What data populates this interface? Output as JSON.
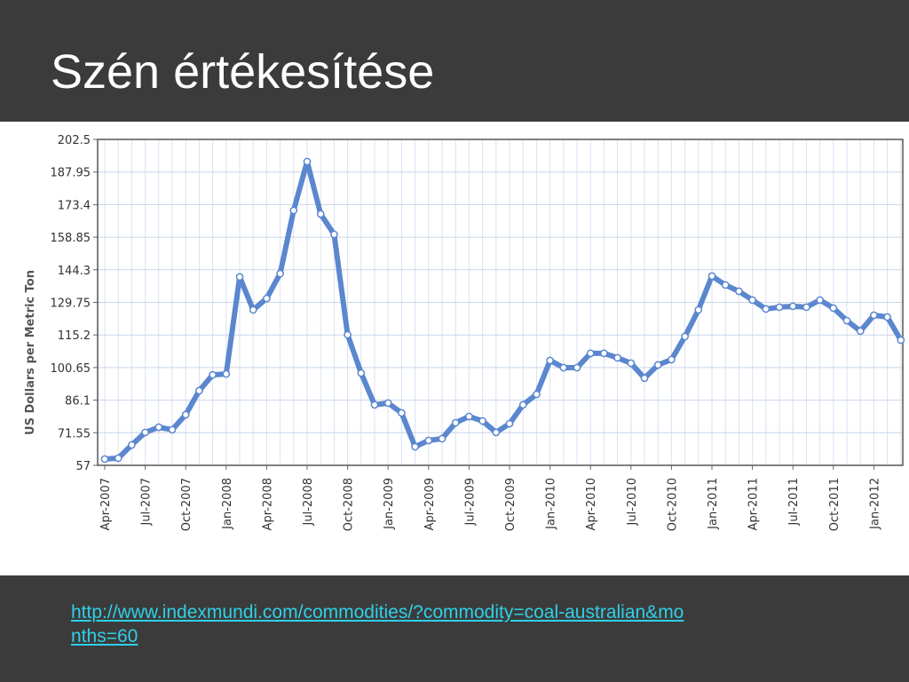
{
  "title": "Szén értékesítése",
  "source_link": "http://www.indexmundi.com/commodities/?commodity=coal-australian&months=60",
  "chart_data": {
    "type": "line",
    "y_label": "US Dollars per Metric Ton",
    "categories": [
      "Apr-2007",
      null,
      null,
      "Jul-2007",
      null,
      null,
      "Oct-2007",
      null,
      null,
      "Jan-2008",
      null,
      null,
      "Apr-2008",
      null,
      null,
      "Jul-2008",
      null,
      null,
      "Oct-2008",
      null,
      null,
      "Jan-2009",
      null,
      null,
      "Apr-2009",
      null,
      null,
      "Jul-2009",
      null,
      null,
      "Oct-2009",
      null,
      null,
      "Jan-2010",
      null,
      null,
      "Apr-2010",
      null,
      null,
      "Jul-2010",
      null,
      null,
      "Oct-2010",
      null,
      null,
      "Jan-2011",
      null,
      null,
      "Apr-2011",
      null,
      null,
      "Jul-2011",
      null,
      null,
      "Oct-2011",
      null,
      null,
      "Jan-2012",
      null,
      null
    ],
    "values": [
      59.8,
      60.2,
      66.1,
      71.7,
      74,
      72.9,
      79.6,
      90.3,
      97.4,
      97.8,
      141.1,
      126.4,
      131.5,
      142.6,
      170.8,
      192.6,
      169.2,
      160.1,
      115.3,
      98.2,
      84,
      84.8,
      80.4,
      65.3,
      68.1,
      68.9,
      76,
      78.8,
      76.8,
      71.7,
      75.6,
      84,
      88.7,
      103.8,
      100.6,
      100.6,
      107,
      107,
      105,
      102.6,
      95.9,
      101.8,
      104.2,
      114.5,
      126.4,
      141.5,
      137.5,
      134.7,
      130.8,
      126.8,
      127.6,
      128,
      127.6,
      130.8,
      127.2,
      121.6,
      116.9,
      124,
      123.2,
      112.9
    ],
    "color": "#5b87cf",
    "ylim": [
      57,
      202.5
    ],
    "yticks": [
      57,
      71.55,
      86.1,
      100.65,
      115.2,
      129.75,
      144.3,
      158.85,
      173.4,
      187.95,
      202.5
    ],
    "grid": true
  }
}
